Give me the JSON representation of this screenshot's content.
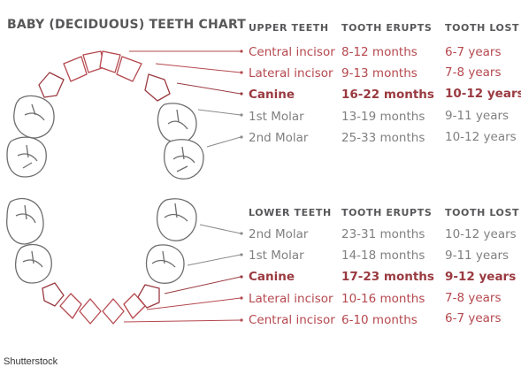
{
  "title": "BABY (DECIDUOUS) TEETH CHART",
  "colors": {
    "accent": "#b5484e",
    "dark_accent": "#9a3a40",
    "muted": "#808082",
    "outline": "#6e6e70"
  },
  "upper": {
    "headers": {
      "teeth": "UPPER TEETH",
      "erupts": "TOOTH ERUPTS",
      "lost": "TOOTH LOST"
    },
    "rows": [
      {
        "name": "Central incisor",
        "erupts": "8-12 months",
        "lost": "6-7 years",
        "tone": "red"
      },
      {
        "name": "Lateral incisor",
        "erupts": "9-13 months",
        "lost": "7-8 years",
        "tone": "red"
      },
      {
        "name": "Canine",
        "erupts": "16-22 months",
        "lost": "10-12 years",
        "tone": "dark"
      },
      {
        "name": "1st Molar",
        "erupts": "13-19 months",
        "lost": "9-11 years",
        "tone": "gray"
      },
      {
        "name": "2nd Molar",
        "erupts": "25-33 months",
        "lost": "10-12 years",
        "tone": "gray"
      }
    ]
  },
  "lower": {
    "headers": {
      "teeth": "LOWER TEETH",
      "erupts": "TOOTH ERUPTS",
      "lost": "TOOTH LOST"
    },
    "rows": [
      {
        "name": "2nd Molar",
        "erupts": "23-31 months",
        "lost": "10-12 years",
        "tone": "gray"
      },
      {
        "name": "1st Molar",
        "erupts": "14-18 months",
        "lost": "9-11 years",
        "tone": "gray"
      },
      {
        "name": "Canine",
        "erupts": "17-23 months",
        "lost": "9-12 years",
        "tone": "dark"
      },
      {
        "name": "Lateral incisor",
        "erupts": "10-16 months",
        "lost": "7-8 years",
        "tone": "red"
      },
      {
        "name": "Central incisor",
        "erupts": "6-10 months",
        "lost": "6-7 years",
        "tone": "red"
      }
    ]
  },
  "credit": "Shutterstock"
}
